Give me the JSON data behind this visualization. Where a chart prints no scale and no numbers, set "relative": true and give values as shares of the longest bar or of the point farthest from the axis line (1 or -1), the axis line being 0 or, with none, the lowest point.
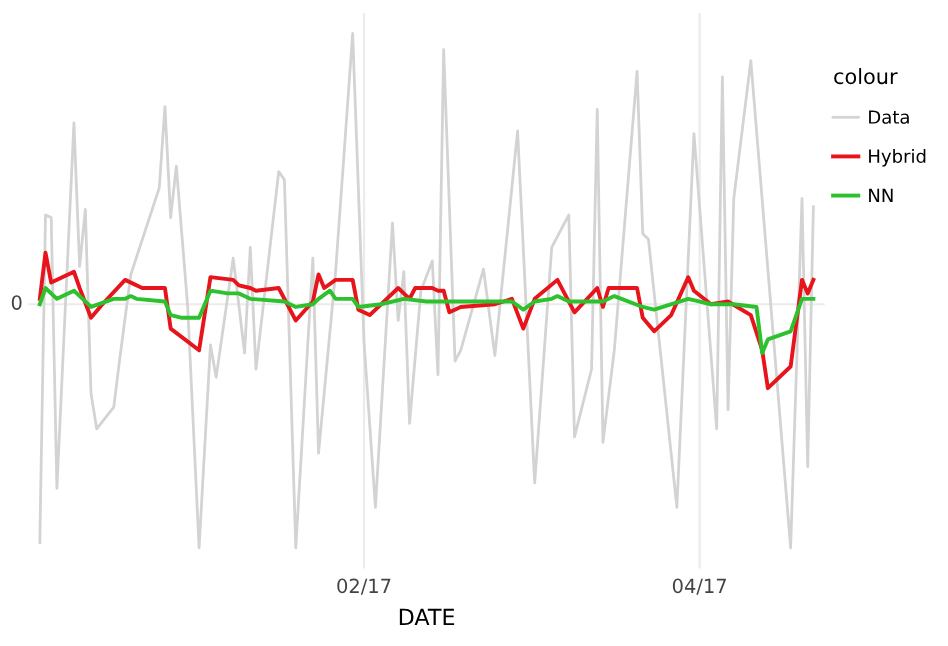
{
  "chart_data": {
    "type": "line",
    "relative": true,
    "xlabel": "DATE",
    "legend_title": "colour",
    "legend": "right",
    "grid": "x",
    "line_style": "solid",
    "xlim": [
      "2016-12-04",
      "2017-04-23"
    ],
    "xticks": [
      {
        "value": "2017-02-01",
        "label": "02/17"
      },
      {
        "value": "2017-04-01",
        "label": "04/17"
      }
    ],
    "ref_lines": [
      {
        "axis": "y",
        "value": 0,
        "label": "0",
        "color": "#ebebeb"
      }
    ],
    "series": [
      {
        "name": "Data",
        "color": "#d3d3d3",
        "x": [
          "2016-12-06",
          "2016-12-07",
          "2016-12-08",
          "2016-12-09",
          "2016-12-12",
          "2016-12-13",
          "2016-12-14",
          "2016-12-15",
          "2016-12-16",
          "2016-12-19",
          "2016-12-20",
          "2016-12-22",
          "2016-12-27",
          "2016-12-28",
          "2016-12-29",
          "2016-12-30",
          "2017-01-01",
          "2017-01-03",
          "2017-01-05",
          "2017-01-06",
          "2017-01-09",
          "2017-01-11",
          "2017-01-12",
          "2017-01-13",
          "2017-01-17",
          "2017-01-18",
          "2017-01-20",
          "2017-01-23",
          "2017-01-24",
          "2017-01-27",
          "2017-01-30",
          "2017-02-01",
          "2017-02-03",
          "2017-02-06",
          "2017-02-07",
          "2017-02-08",
          "2017-02-09",
          "2017-02-11",
          "2017-02-13",
          "2017-02-14",
          "2017-02-15",
          "2017-02-17",
          "2017-02-18",
          "2017-02-22",
          "2017-02-24",
          "2017-02-28",
          "2017-03-03",
          "2017-03-06",
          "2017-03-09",
          "2017-03-10",
          "2017-03-13",
          "2017-03-14",
          "2017-03-15",
          "2017-03-17",
          "2017-03-21",
          "2017-03-22",
          "2017-03-23",
          "2017-03-28",
          "2017-03-31",
          "2017-04-04",
          "2017-04-05",
          "2017-04-06",
          "2017-04-07",
          "2017-04-10",
          "2017-04-17",
          "2017-04-19",
          "2017-04-20",
          "2017-04-21"
        ],
        "values": [
          -0.88,
          0.33,
          0.32,
          -0.68,
          0.67,
          0.14,
          0.35,
          -0.33,
          -0.46,
          -0.38,
          -0.21,
          0.11,
          0.43,
          0.73,
          0.32,
          0.51,
          -0.01,
          -0.9,
          -0.15,
          -0.27,
          0.17,
          -0.18,
          0.21,
          -0.24,
          0.49,
          0.46,
          -0.9,
          0.17,
          -0.55,
          0.12,
          1.0,
          -0.14,
          -0.75,
          0.3,
          -0.06,
          0.12,
          -0.44,
          0.05,
          0.16,
          -0.26,
          0.94,
          -0.21,
          -0.17,
          0.13,
          -0.19,
          0.64,
          -0.66,
          0.21,
          0.33,
          -0.49,
          -0.24,
          0.72,
          -0.51,
          -0.17,
          0.86,
          0.26,
          0.24,
          -0.75,
          0.63,
          -0.46,
          0.84,
          -0.39,
          0.39,
          0.9,
          -0.9,
          0.39,
          -0.6,
          0.36
        ]
      },
      {
        "name": "Hybrid",
        "color": "#e8141c",
        "x": [
          "2016-12-06",
          "2016-12-07",
          "2016-12-08",
          "2016-12-12",
          "2016-12-13",
          "2016-12-15",
          "2016-12-17",
          "2016-12-21",
          "2016-12-24",
          "2016-12-28",
          "2016-12-29",
          "2017-01-03",
          "2017-01-05",
          "2017-01-09",
          "2017-01-10",
          "2017-01-12",
          "2017-01-13",
          "2017-01-17",
          "2017-01-20",
          "2017-01-23",
          "2017-01-24",
          "2017-01-25",
          "2017-01-27",
          "2017-01-30",
          "2017-01-31",
          "2017-02-02",
          "2017-02-07",
          "2017-02-09",
          "2017-02-10",
          "2017-02-13",
          "2017-02-14",
          "2017-02-15",
          "2017-02-16",
          "2017-02-18",
          "2017-02-24",
          "2017-02-27",
          "2017-03-01",
          "2017-03-03",
          "2017-03-07",
          "2017-03-10",
          "2017-03-14",
          "2017-03-15",
          "2017-03-16",
          "2017-03-21",
          "2017-03-22",
          "2017-03-24",
          "2017-03-27",
          "2017-03-30",
          "2017-03-31",
          "2017-04-03",
          "2017-04-06",
          "2017-04-10",
          "2017-04-12",
          "2017-04-13",
          "2017-04-17",
          "2017-04-19",
          "2017-04-20",
          "2017-04-21"
        ],
        "values": [
          0.02,
          0.19,
          0.08,
          0.12,
          0.06,
          -0.05,
          0.0,
          0.09,
          0.06,
          0.06,
          -0.09,
          -0.17,
          0.1,
          0.09,
          0.07,
          0.06,
          0.05,
          0.06,
          -0.06,
          0.01,
          0.11,
          0.06,
          0.09,
          0.09,
          -0.02,
          -0.04,
          0.06,
          0.02,
          0.06,
          0.06,
          0.05,
          0.05,
          -0.03,
          -0.01,
          0.0,
          0.02,
          -0.09,
          0.02,
          0.09,
          -0.03,
          0.06,
          -0.01,
          0.06,
          0.06,
          -0.05,
          -0.1,
          -0.04,
          0.1,
          0.05,
          0.0,
          0.01,
          -0.04,
          -0.17,
          -0.31,
          -0.23,
          0.09,
          0.04,
          0.09
        ]
      },
      {
        "name": "NN",
        "color": "#2ec12e",
        "x": [
          "2016-12-06",
          "2016-12-07",
          "2016-12-09",
          "2016-12-12",
          "2016-12-15",
          "2016-12-19",
          "2016-12-21",
          "2016-12-22",
          "2016-12-23",
          "2016-12-28",
          "2016-12-29",
          "2016-12-31",
          "2017-01-03",
          "2017-01-05",
          "2017-01-08",
          "2017-01-10",
          "2017-01-12",
          "2017-01-18",
          "2017-01-20",
          "2017-01-23",
          "2017-01-24",
          "2017-01-26",
          "2017-01-27",
          "2017-01-30",
          "2017-01-31",
          "2017-02-04",
          "2017-02-08",
          "2017-02-12",
          "2017-02-21",
          "2017-02-23",
          "2017-02-27",
          "2017-03-01",
          "2017-03-03",
          "2017-03-06",
          "2017-03-07",
          "2017-03-09",
          "2017-03-13",
          "2017-03-15",
          "2017-03-17",
          "2017-03-22",
          "2017-03-24",
          "2017-03-30",
          "2017-04-03",
          "2017-04-07",
          "2017-04-11",
          "2017-04-12",
          "2017-04-13",
          "2017-04-17",
          "2017-04-19",
          "2017-04-21"
        ],
        "values": [
          0.0,
          0.06,
          0.02,
          0.05,
          -0.01,
          0.02,
          0.02,
          0.03,
          0.02,
          0.01,
          -0.04,
          -0.05,
          -0.05,
          0.05,
          0.04,
          0.04,
          0.02,
          0.01,
          -0.01,
          0.0,
          0.02,
          0.05,
          0.02,
          0.02,
          -0.01,
          0.0,
          0.02,
          0.01,
          0.01,
          0.01,
          0.01,
          -0.02,
          0.01,
          0.02,
          0.03,
          0.01,
          0.01,
          0.01,
          0.03,
          -0.01,
          -0.02,
          0.02,
          0.0,
          0.0,
          -0.01,
          -0.18,
          -0.13,
          -0.1,
          0.02,
          0.02
        ]
      }
    ]
  }
}
